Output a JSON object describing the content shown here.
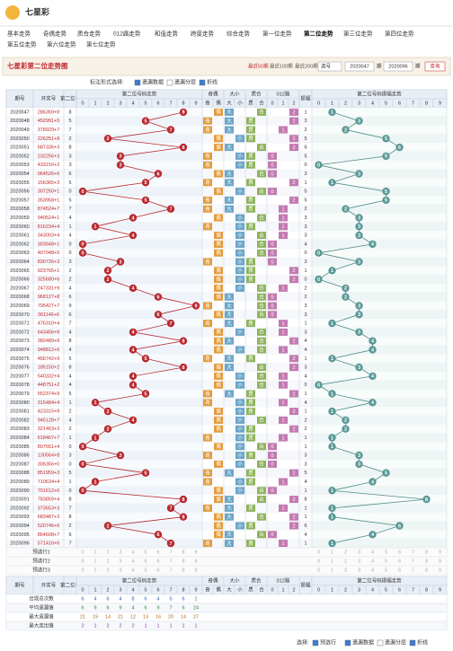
{
  "header": {
    "logo": "七星彩"
  },
  "nav": [
    "基本走势",
    "奇偶走势",
    "质合走势",
    "012路走势",
    "和值走势",
    "跨度走势",
    "综合走势",
    "第一位走势",
    "第二位走势",
    "第三位走势",
    "第四位走势",
    "第五位走势",
    "第六位走势",
    "第七位走势"
  ],
  "title_bar": {
    "title": "七星彩第二位走势图",
    "ranges": [
      "最近50期",
      "最近100期",
      "最近200期"
    ],
    "select": "选号",
    "from": "2020047",
    "from_unit": "期",
    "to": "2020096",
    "to_unit": "期",
    "button": "查询"
  },
  "options": {
    "label": "标注形式选择:",
    "items": [
      "遗漏数据",
      "遗漏分层",
      "折线"
    ],
    "checked": [
      true,
      false,
      true
    ]
  },
  "table": {
    "headers": {
      "issue": "期号",
      "number": "开奖号",
      "digit": "第二位号",
      "trend": "第二位号码走势",
      "oe": "奇偶",
      "size": "大小",
      "prime": "质合",
      "route": "012路",
      "amp": "振幅",
      "amp_trend": "第二位号码振幅走势"
    },
    "grid_labels": [
      0,
      1,
      2,
      3,
      4,
      5,
      6,
      7,
      8,
      9
    ],
    "oe_labels": [
      "奇",
      "偶"
    ],
    "size_labels": [
      "大",
      "小"
    ],
    "prime_labels": [
      "质",
      "合"
    ],
    "route_labels": [
      0,
      1,
      2
    ],
    "rows": [
      [
        "2020047",
        "286359+8",
        8,
        1
      ],
      [
        "2020048",
        "452991+5",
        5,
        3
      ],
      [
        "2020049",
        "378929+7",
        7,
        2
      ],
      [
        "2020050",
        "226251+8",
        2,
        5
      ],
      [
        "2020051",
        "687336+3",
        8,
        6
      ],
      [
        "2020052",
        "232256+3",
        3,
        5
      ],
      [
        "2020053",
        "433216+2",
        3,
        0
      ],
      [
        "2020054",
        "964526+6",
        6,
        3
      ],
      [
        "2020055",
        "156365+3",
        5,
        1
      ],
      [
        "2020056",
        "307250+1",
        0,
        5
      ],
      [
        "2020057",
        "353958+1",
        5,
        5
      ],
      [
        "2020058",
        "874524+7",
        7,
        2
      ],
      [
        "2020059",
        "940524+1",
        4,
        3
      ],
      [
        "2020060",
        "816234+4",
        1,
        3
      ],
      [
        "2020061",
        "343003+4",
        4,
        3
      ],
      [
        "2020062",
        "303948+1",
        0,
        4
      ],
      [
        "2020063",
        "407048+5",
        0,
        0
      ],
      [
        "2020064",
        "830726+3",
        3,
        3
      ],
      [
        "2020065",
        "923765+1",
        2,
        1
      ],
      [
        "2020066",
        "325680+6",
        2,
        0
      ],
      [
        "2020067",
        "247331+9",
        4,
        2
      ],
      [
        "2020068",
        "968127+8",
        6,
        2
      ],
      [
        "2020069",
        "795427+7",
        9,
        3
      ],
      [
        "2020070",
        "361146+6",
        6,
        3
      ],
      [
        "2020071",
        "476310+4",
        7,
        1
      ],
      [
        "2020072",
        "643456+8",
        4,
        3
      ],
      [
        "2020073",
        "382489+8",
        8,
        4
      ],
      [
        "2020074",
        "948812+6",
        4,
        4
      ],
      [
        "2020075",
        "456742+9",
        5,
        1
      ],
      [
        "2020076",
        "185150+2",
        8,
        3
      ],
      [
        "2020077",
        "540332+4",
        4,
        4
      ],
      [
        "2020078",
        "448751+2",
        4,
        0
      ],
      [
        "2020079",
        "552374+9",
        5,
        1
      ],
      [
        "2020080",
        "315484+4",
        1,
        4
      ],
      [
        "2020081",
        "423315+8",
        2,
        1
      ],
      [
        "2020082",
        "945128+7",
        4,
        2
      ],
      [
        "2020083",
        "321463+3",
        2,
        2
      ],
      [
        "2020084",
        "618467+7",
        1,
        1
      ],
      [
        "2020085",
        "807651+4",
        0,
        1
      ],
      [
        "2020086",
        "130564+8",
        3,
        3
      ],
      [
        "2020087",
        "306356+0",
        0,
        3
      ],
      [
        "2020088",
        "851959+3",
        5,
        5
      ],
      [
        "2020089",
        "710634+4",
        1,
        4
      ],
      [
        "2020090",
        "701612+6",
        0,
        1
      ],
      [
        "2020091",
        "783859+4",
        8,
        8
      ],
      [
        "2020092",
        "373653+3",
        7,
        1
      ],
      [
        "2020093",
        "683487+3",
        8,
        1
      ],
      [
        "2020094",
        "520746+6",
        2,
        6
      ],
      [
        "2020095",
        "864698+7",
        6,
        4
      ],
      [
        "2020096",
        "571416+6",
        7,
        1
      ]
    ],
    "preselect": [
      "预选行1",
      "预选行2",
      "预选行3"
    ],
    "stats": [
      {
        "label": "出现总次数",
        "values": [
          6,
          4,
          6,
          4,
          8,
          6,
          4,
          5,
          6,
          1
        ]
      },
      {
        "label": "平均遗漏值",
        "values": [
          6,
          9,
          6,
          9,
          4,
          6,
          9,
          7,
          6,
          24
        ]
      },
      {
        "label": "最大遗漏值",
        "values": [
          21,
          19,
          14,
          21,
          12,
          13,
          16,
          20,
          14,
          27
        ]
      },
      {
        "label": "最大连出值",
        "values": [
          2,
          1,
          2,
          2,
          2,
          1,
          1,
          1,
          1,
          1
        ]
      }
    ]
  },
  "footer": {
    "label": "选择:",
    "items": [
      "预选行",
      "遗漏数据",
      "遗漏分层",
      "折线"
    ],
    "checked": [
      true,
      true,
      false,
      true
    ]
  }
}
